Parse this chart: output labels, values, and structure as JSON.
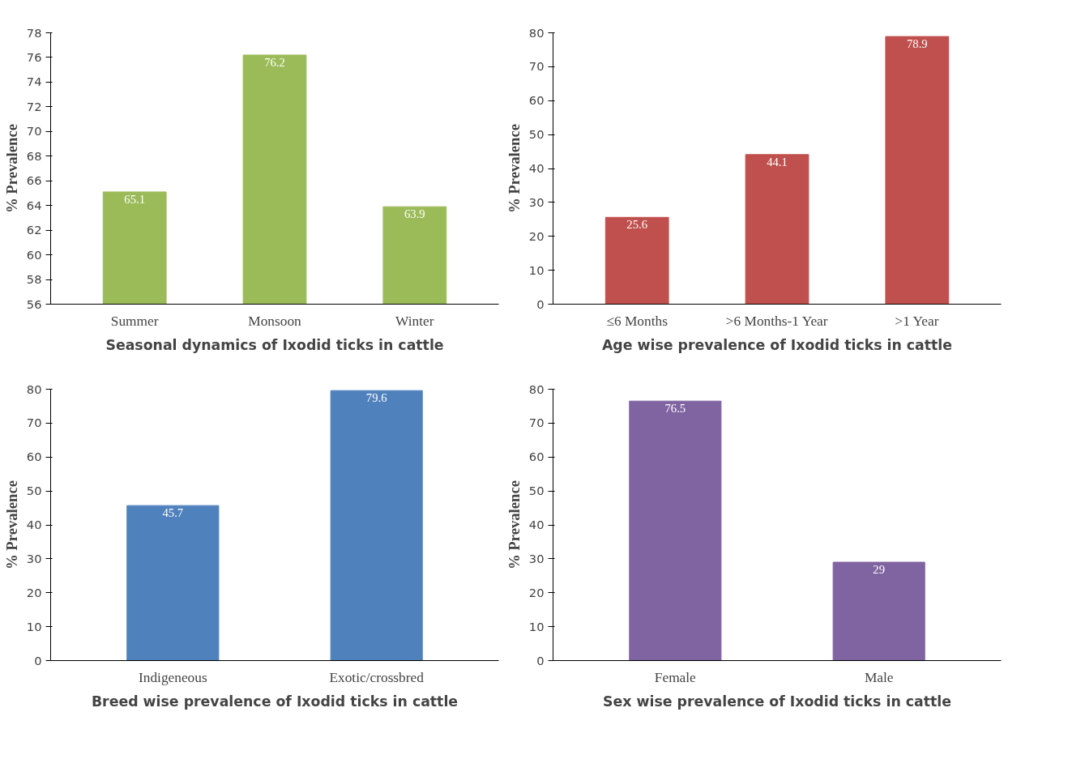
{
  "chart_data": [
    {
      "type": "bar",
      "title": "Seasonal dynamics of Ixodid ticks in cattle",
      "ylabel": "% Prevalence",
      "categories": [
        "Summer",
        "Monsoon",
        "Winter"
      ],
      "values": [
        65.1,
        76.2,
        63.9
      ],
      "color": "#9bbb59",
      "ylim": [
        56,
        78
      ],
      "yticks": [
        56,
        58,
        60,
        62,
        64,
        66,
        68,
        70,
        72,
        74,
        76,
        78
      ],
      "data_labels": true,
      "grid": false
    },
    {
      "type": "bar",
      "title": "Age wise prevalence of Ixodid ticks in cattle",
      "ylabel": "% Prevalence",
      "categories": [
        "≤6 Months",
        ">6 Months-1 Year",
        ">1 Year"
      ],
      "values": [
        25.6,
        44.1,
        78.9
      ],
      "color": "#c0504d",
      "ylim": [
        0,
        80
      ],
      "yticks": [
        0,
        10,
        20,
        30,
        40,
        50,
        60,
        70,
        80
      ],
      "data_labels": true,
      "grid": false
    },
    {
      "type": "bar",
      "title": "Breed wise prevalence of Ixodid ticks in cattle",
      "ylabel": "% Prevalence",
      "categories": [
        "Indigeneous",
        "Exotic/crossbred"
      ],
      "values": [
        45.7,
        79.6
      ],
      "color": "#4f81bd",
      "ylim": [
        0,
        80
      ],
      "yticks": [
        0,
        10,
        20,
        30,
        40,
        50,
        60,
        70,
        80
      ],
      "data_labels": true,
      "grid": false
    },
    {
      "type": "bar",
      "title": "Sex wise prevalence of Ixodid ticks in cattle",
      "ylabel": "% Prevalence",
      "categories": [
        "Female",
        "Male"
      ],
      "values": [
        76.5,
        29
      ],
      "color": "#8064a2",
      "ylim": [
        0,
        80
      ],
      "yticks": [
        0,
        10,
        20,
        30,
        40,
        50,
        60,
        70,
        80
      ],
      "data_labels": true,
      "grid": false
    }
  ]
}
